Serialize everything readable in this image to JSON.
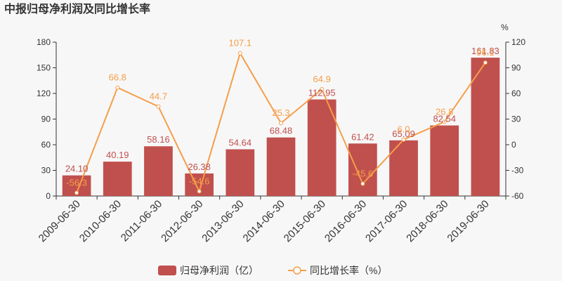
{
  "chart_data": {
    "type": "bar+line",
    "title": "中报归母净利润及同比增长率",
    "categories": [
      "2009-06-30",
      "2010-06-30",
      "2011-06-30",
      "2012-06-30",
      "2013-06-30",
      "2014-06-30",
      "2015-06-30",
      "2016-06-30",
      "2017-06-30",
      "2018-06-30",
      "2019-06-30"
    ],
    "series": [
      {
        "name": "归母净利润（亿）",
        "type": "bar",
        "axis": "left",
        "color": "#c0504d",
        "values": [
          24.1,
          40.19,
          58.16,
          26.38,
          54.64,
          68.48,
          112.95,
          61.42,
          65.09,
          82.54,
          161.83
        ],
        "labels": [
          "24.10",
          "40.19",
          "58.16",
          "26.38",
          "54.64",
          "68.48",
          "112.95",
          "61.42",
          "65.09",
          "82.54",
          "161.83"
        ]
      },
      {
        "name": "同比增长率（%）",
        "type": "line",
        "axis": "right",
        "color": "#f59e4a",
        "values": [
          -56.3,
          66.8,
          44.7,
          -54.6,
          107.1,
          25.3,
          64.9,
          -45.6,
          6.0,
          26.8,
          96.1
        ],
        "labels": [
          "-56.3",
          "66.8",
          "44.7",
          "-54.6",
          "107.1",
          "25.3",
          "64.9",
          "-45.6",
          "6.0",
          "26.8",
          "96.1"
        ]
      }
    ],
    "y_left": {
      "lim": [
        0,
        180
      ],
      "ticks": [
        "0",
        "30",
        "60",
        "90",
        "120",
        "150",
        "180"
      ]
    },
    "y_right": {
      "lim": [
        -60,
        120
      ],
      "ticks": [
        "-60",
        "-30",
        "0",
        "30",
        "60",
        "90",
        "120"
      ],
      "unit": "%"
    },
    "grid": false,
    "legend_position": "bottom"
  }
}
